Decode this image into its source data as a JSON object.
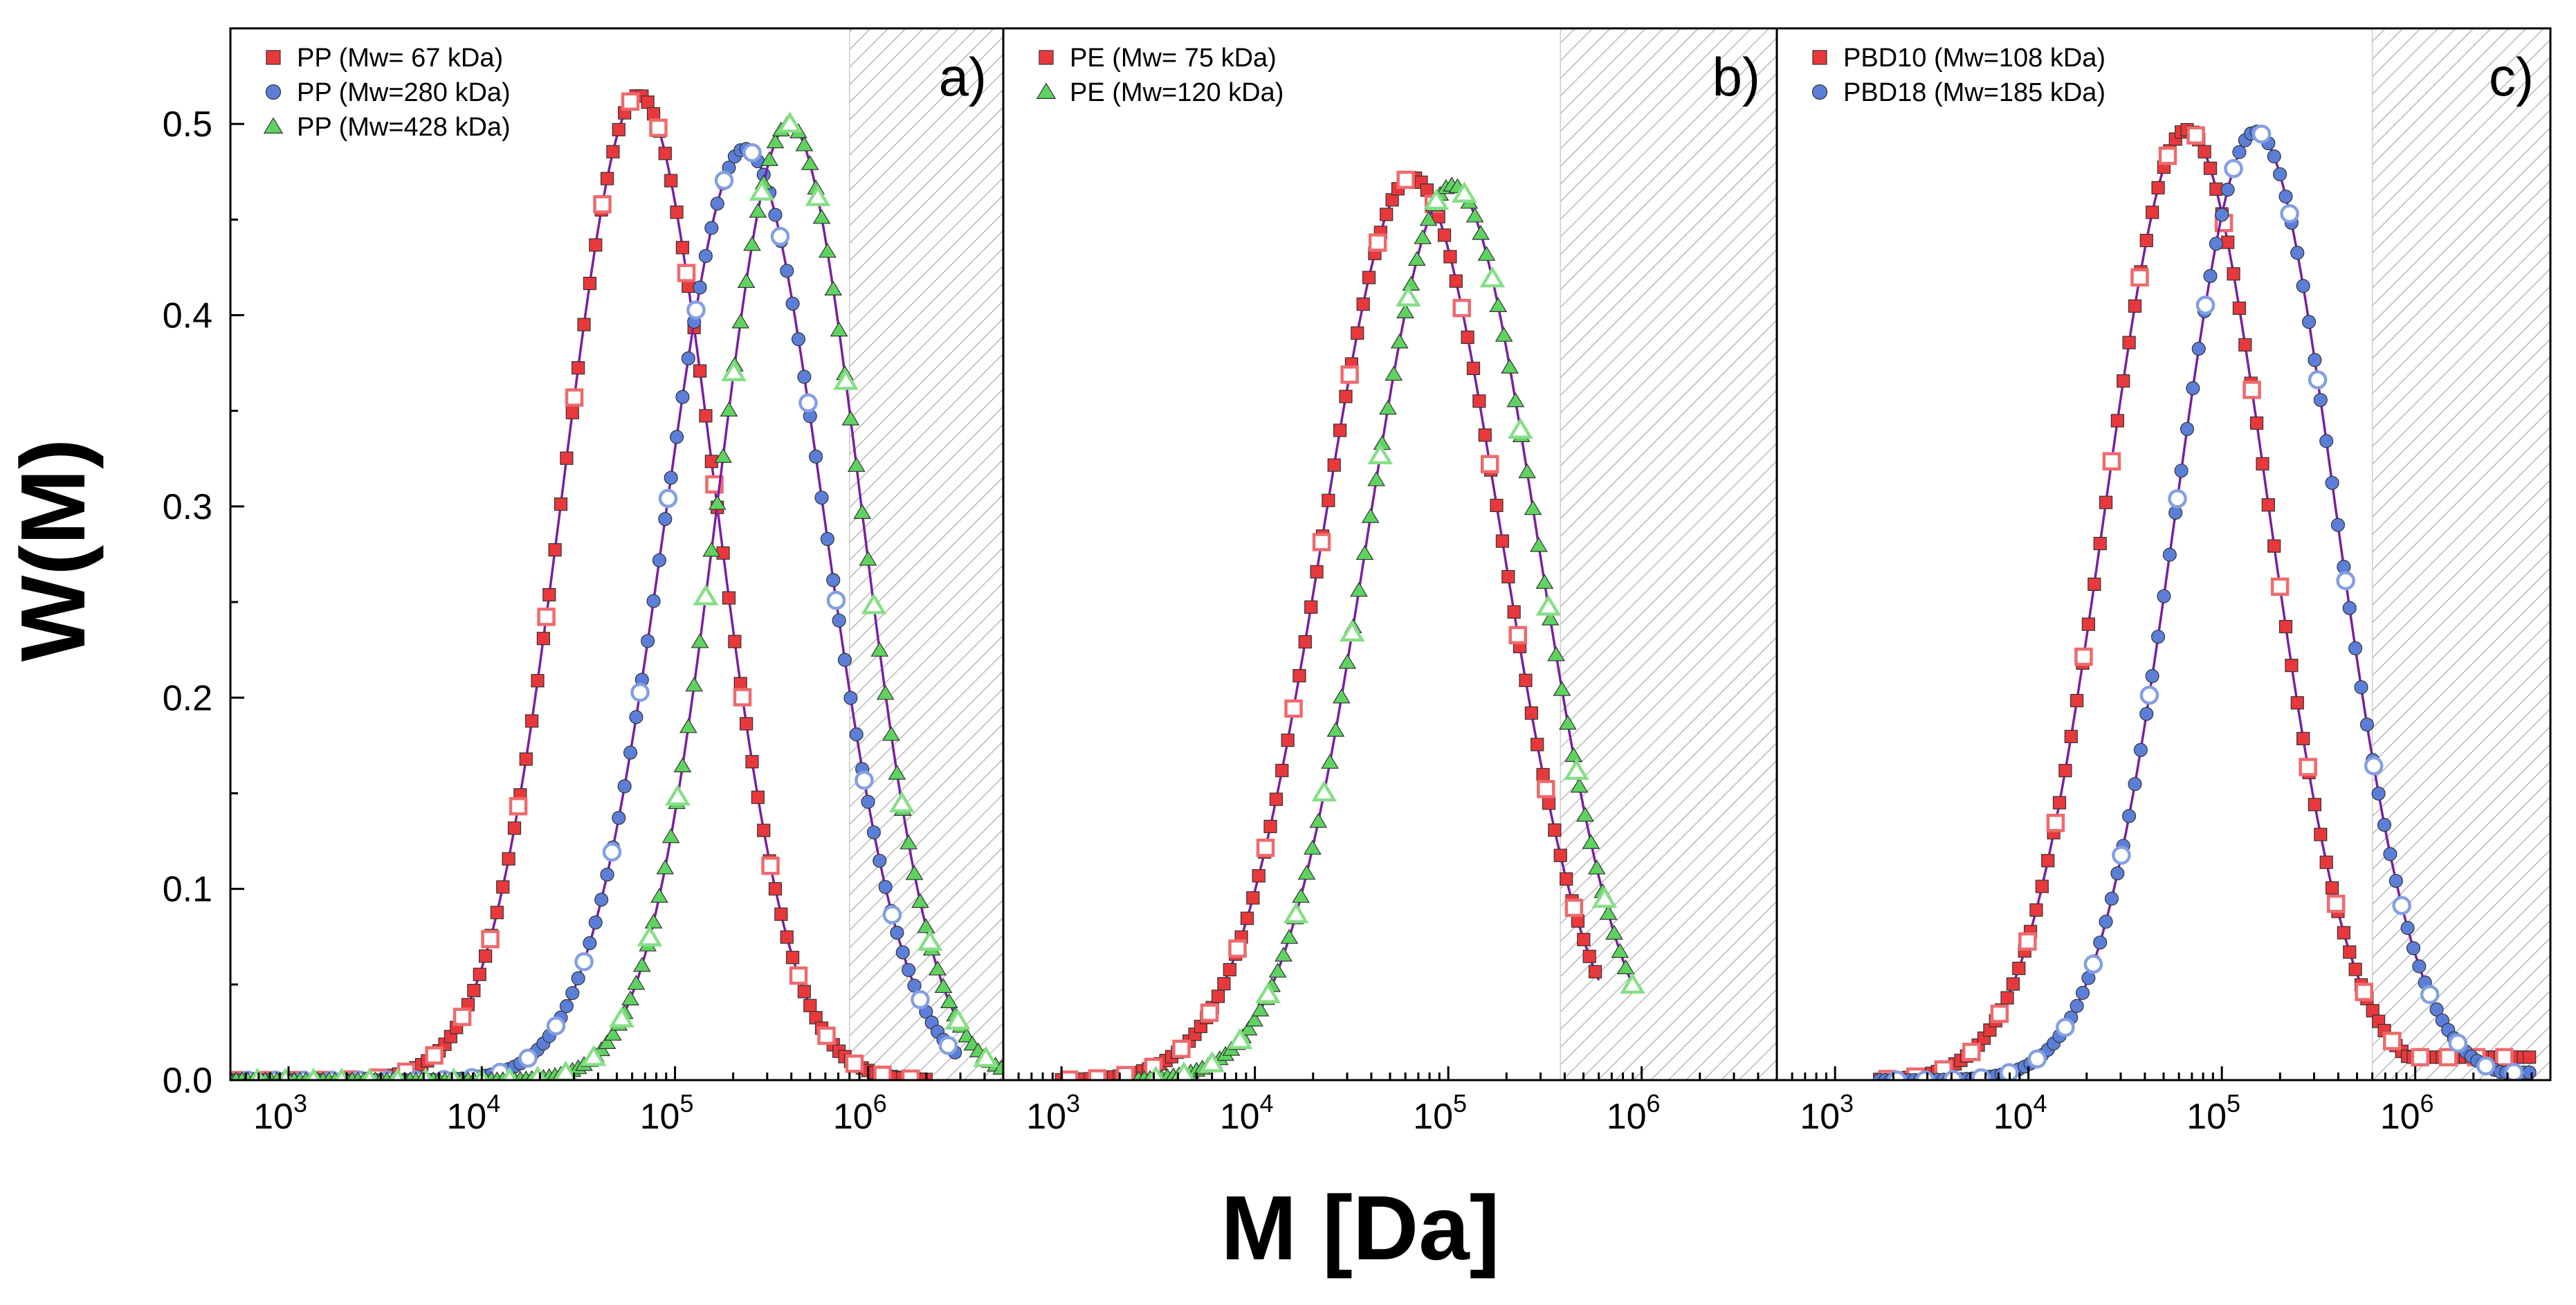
{
  "figure": {
    "xlabel": "M [Da]",
    "ylabel": "W(M)"
  },
  "chart_data": [
    {
      "type": "scatter",
      "panel_label": "a)",
      "xscale": "log",
      "xlim": [
        500,
        5000000
      ],
      "ylim": [
        0,
        0.55
      ],
      "yticks": [
        0,
        0.1,
        0.2,
        0.3,
        0.4,
        0.5
      ],
      "ytick_labels": [
        "0.0",
        "0.1",
        "0.2",
        "0.3",
        "0.4",
        "0.5"
      ],
      "xtick_exponents": [
        "3",
        "4",
        "5",
        "6"
      ],
      "xtick_base": "10",
      "shaded_region": [
        800000,
        5000000
      ],
      "legend_position": "top-left",
      "series": [
        {
          "name": "PP (Mw=  67 kDa)",
          "marker": "square",
          "color": "#e8383c",
          "peak_M": 65000,
          "peak_W": 0.515,
          "sigma_log10": 0.39,
          "range": [
            500,
            2000000
          ]
        },
        {
          "name": "PP (Mw=280 kDa)",
          "marker": "circle",
          "color": "#5b7fd9",
          "peak_M": 230000,
          "peak_W": 0.487,
          "sigma_log10": 0.41,
          "range": [
            500,
            3000000
          ]
        },
        {
          "name": "PP (Mw=428 kDa)",
          "marker": "triangle",
          "color": "#5fd35f",
          "peak_M": 390000,
          "peak_W": 0.5,
          "sigma_log10": 0.37,
          "range": [
            500,
            5000000
          ]
        }
      ]
    },
    {
      "type": "scatter",
      "panel_label": "b)",
      "xscale": "log",
      "xlim": [
        500,
        5000000
      ],
      "ylim": [
        0,
        0.55
      ],
      "xtick_exponents": [
        "3",
        "4",
        "5",
        "6"
      ],
      "xtick_base": "10",
      "shaded_region": [
        380000,
        5000000
      ],
      "legend_position": "top-left",
      "series": [
        {
          "name": "PE (Mw=  75 kDa)",
          "marker": "square",
          "color": "#e8383c",
          "peak_M": 65000,
          "peak_W": 0.472,
          "sigma_log10": 0.46,
          "range": [
            1000,
            600000
          ]
        },
        {
          "name": "PE (Mw=120 kDa)",
          "marker": "triangle",
          "color": "#5fd35f",
          "peak_M": 105000,
          "peak_W": 0.468,
          "sigma_log10": 0.44,
          "range": [
            2500,
            900000
          ]
        }
      ]
    },
    {
      "type": "scatter",
      "panel_label": "c)",
      "xscale": "log",
      "xlim": [
        500,
        5000000
      ],
      "ylim": [
        0,
        0.55
      ],
      "xtick_exponents": [
        "3",
        "4",
        "5",
        "6"
      ],
      "xtick_base": "10",
      "shaded_region": [
        600000,
        5000000
      ],
      "legend_position": "top-left",
      "series": [
        {
          "name": "PBD10 (Mw=108 kDa)",
          "marker": "square",
          "color": "#e8383c",
          "peak_M": 66000,
          "peak_W": 0.497,
          "sigma_log10": 0.42,
          "range": [
            1700,
            4000000
          ],
          "tail_W": 0.012
        },
        {
          "name": "PBD18 (Mw=185 kDa)",
          "marker": "circle",
          "color": "#5b7fd9",
          "peak_M": 150000,
          "peak_W": 0.496,
          "sigma_log10": 0.41,
          "range": [
            1700,
            4000000
          ],
          "tail_W": 0.004
        }
      ]
    }
  ]
}
